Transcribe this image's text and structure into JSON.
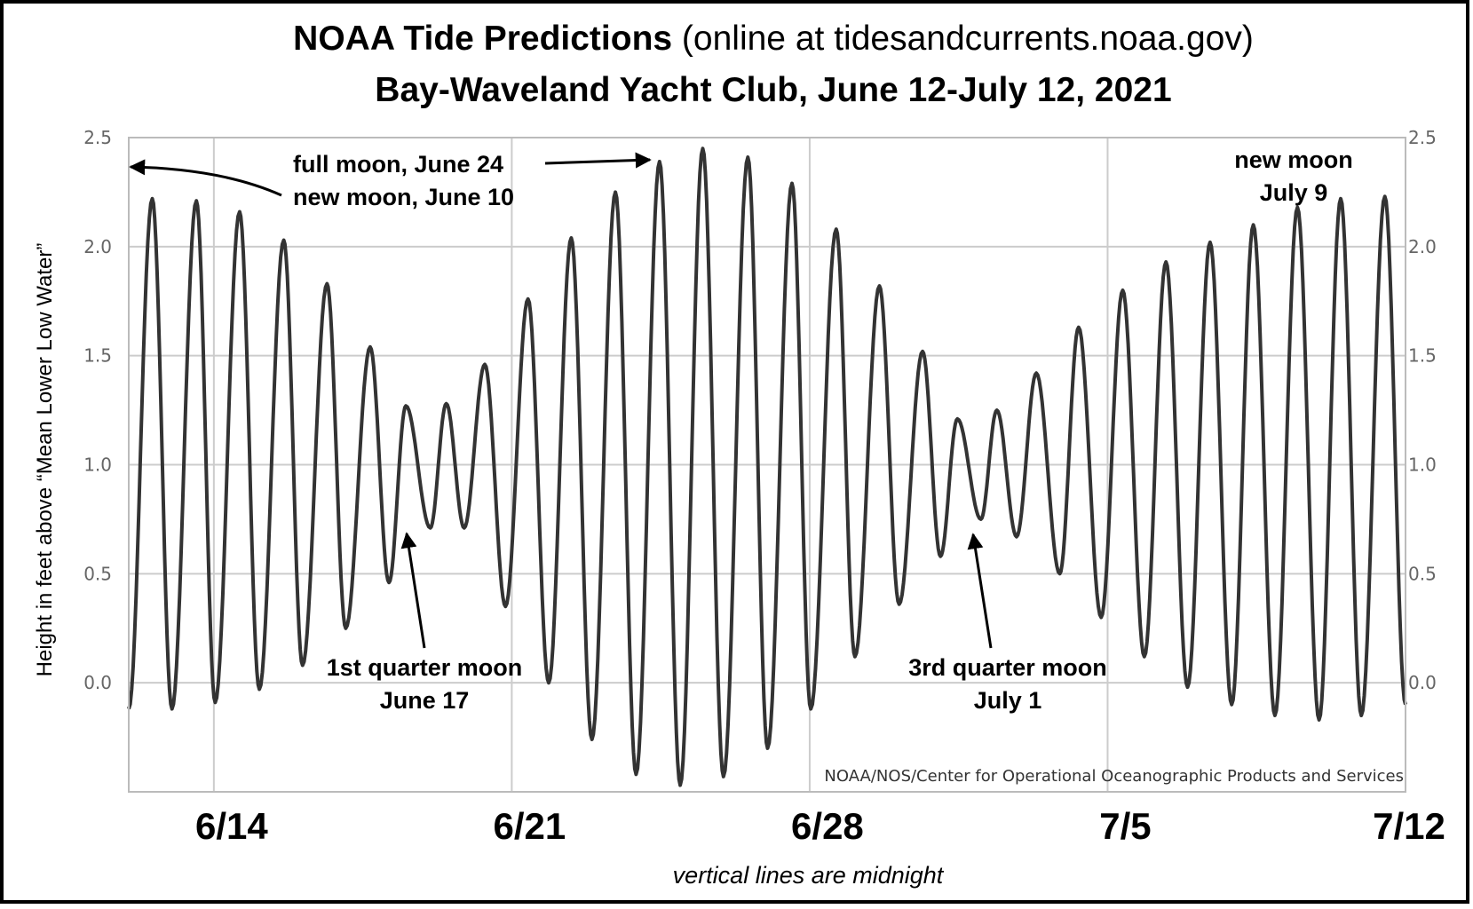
{
  "chart_data": {
    "type": "line",
    "title": "NOAA Tide Predictions",
    "title_note": "(online at tidesandcurrents.noaa.gov)",
    "subtitle": "Bay-Waveland Yacht Club, June 12-July 12, 2021",
    "ylabel": "Height in feet above “Mean Lower Low Water”",
    "xlabel": "vertical lines are midnight",
    "credit": "NOAA/NOS/Center for Operational Oceanographic Products and Services",
    "xlim": [
      "2021-06-12T00:00",
      "2021-07-12T00:00"
    ],
    "ylim": [
      -0.5,
      2.5
    ],
    "grid": true,
    "line_color": "#333333",
    "y_ticks": [
      "0.0",
      "0.5",
      "1.0",
      "1.5",
      "2.0",
      "2.5"
    ],
    "x_ticks": [
      {
        "date": "2021-06-14",
        "label": "6/14"
      },
      {
        "date": "2021-06-21",
        "label": "6/21"
      },
      {
        "date": "2021-06-28",
        "label": "6/28"
      },
      {
        "date": "2021-07-05",
        "label": "7/5"
      },
      {
        "date": "2021-07-12",
        "label": "7/12"
      }
    ],
    "points": [
      [
        "2021-06-12T00:00",
        -0.12
      ],
      [
        "2021-06-12T13:15",
        2.22
      ],
      [
        "2021-06-13T00:22",
        -0.12
      ],
      [
        "2021-06-13T14:08",
        2.21
      ],
      [
        "2021-06-14T00:45",
        -0.09
      ],
      [
        "2021-06-14T14:31",
        2.16
      ],
      [
        "2021-06-15T01:38",
        -0.03
      ],
      [
        "2021-06-15T15:25",
        2.03
      ],
      [
        "2021-06-16T02:01",
        0.08
      ],
      [
        "2021-06-16T15:48",
        1.83
      ],
      [
        "2021-06-17T02:23",
        0.25
      ],
      [
        "2021-06-17T16:09",
        1.54
      ],
      [
        "2021-06-18T02:45",
        0.46
      ],
      [
        "2021-06-18T12:17",
        1.27
      ],
      [
        "2021-06-19T02:04",
        0.71
      ],
      [
        "2021-06-19T11:04",
        1.28
      ],
      [
        "2021-06-19T21:09",
        0.71
      ],
      [
        "2021-06-20T08:47",
        1.46
      ],
      [
        "2021-06-20T20:27",
        0.35
      ],
      [
        "2021-06-21T09:10",
        1.76
      ],
      [
        "2021-06-21T20:50",
        0.0
      ],
      [
        "2021-06-22T09:32",
        2.04
      ],
      [
        "2021-06-22T21:12",
        -0.26
      ],
      [
        "2021-06-23T10:26",
        2.25
      ],
      [
        "2021-06-23T22:06",
        -0.42
      ],
      [
        "2021-06-24T11:20",
        2.39
      ],
      [
        "2021-06-24T23:00",
        -0.47
      ],
      [
        "2021-06-25T11:42",
        2.45
      ],
      [
        "2021-06-25T23:23",
        -0.43
      ],
      [
        "2021-06-26T13:08",
        2.41
      ],
      [
        "2021-06-27T00:16",
        -0.3
      ],
      [
        "2021-06-27T14:02",
        2.29
      ],
      [
        "2021-06-28T00:37",
        -0.12
      ],
      [
        "2021-06-28T14:57",
        2.08
      ],
      [
        "2021-06-29T01:32",
        0.12
      ],
      [
        "2021-06-29T15:19",
        1.82
      ],
      [
        "2021-06-30T02:27",
        0.36
      ],
      [
        "2021-06-30T15:40",
        1.52
      ],
      [
        "2021-07-01T01:45",
        0.58
      ],
      [
        "2021-07-01T11:17",
        1.21
      ],
      [
        "2021-07-02T00:32",
        0.75
      ],
      [
        "2021-07-02T09:32",
        1.25
      ],
      [
        "2021-07-02T20:40",
        0.67
      ],
      [
        "2021-07-03T07:48",
        1.42
      ],
      [
        "2021-07-03T21:01",
        0.5
      ],
      [
        "2021-07-04T07:38",
        1.63
      ],
      [
        "2021-07-04T20:21",
        0.3
      ],
      [
        "2021-07-05T08:31",
        1.8
      ],
      [
        "2021-07-05T20:43",
        0.12
      ],
      [
        "2021-07-06T08:54",
        1.93
      ],
      [
        "2021-07-06T21:06",
        -0.02
      ],
      [
        "2021-07-07T09:48",
        2.02
      ],
      [
        "2021-07-07T21:59",
        -0.1
      ],
      [
        "2021-07-08T10:11",
        2.1
      ],
      [
        "2021-07-08T22:22",
        -0.15
      ],
      [
        "2021-07-09T11:04",
        2.18
      ],
      [
        "2021-07-09T23:15",
        -0.17
      ],
      [
        "2021-07-10T11:27",
        2.22
      ],
      [
        "2021-07-10T23:05",
        -0.15
      ],
      [
        "2021-07-11T12:20",
        2.23
      ],
      [
        "2021-07-12T00:00",
        -0.1
      ]
    ],
    "annotations": {
      "full_moon": "full moon, June 24",
      "new_moon_june": "new moon, June 10",
      "new_moon_july_1": "new moon",
      "new_moon_july_2": "July 9",
      "first_quarter_1": "1st quarter moon",
      "first_quarter_2": "June 17",
      "third_quarter_1": "3rd quarter moon",
      "third_quarter_2": "July 1"
    }
  }
}
